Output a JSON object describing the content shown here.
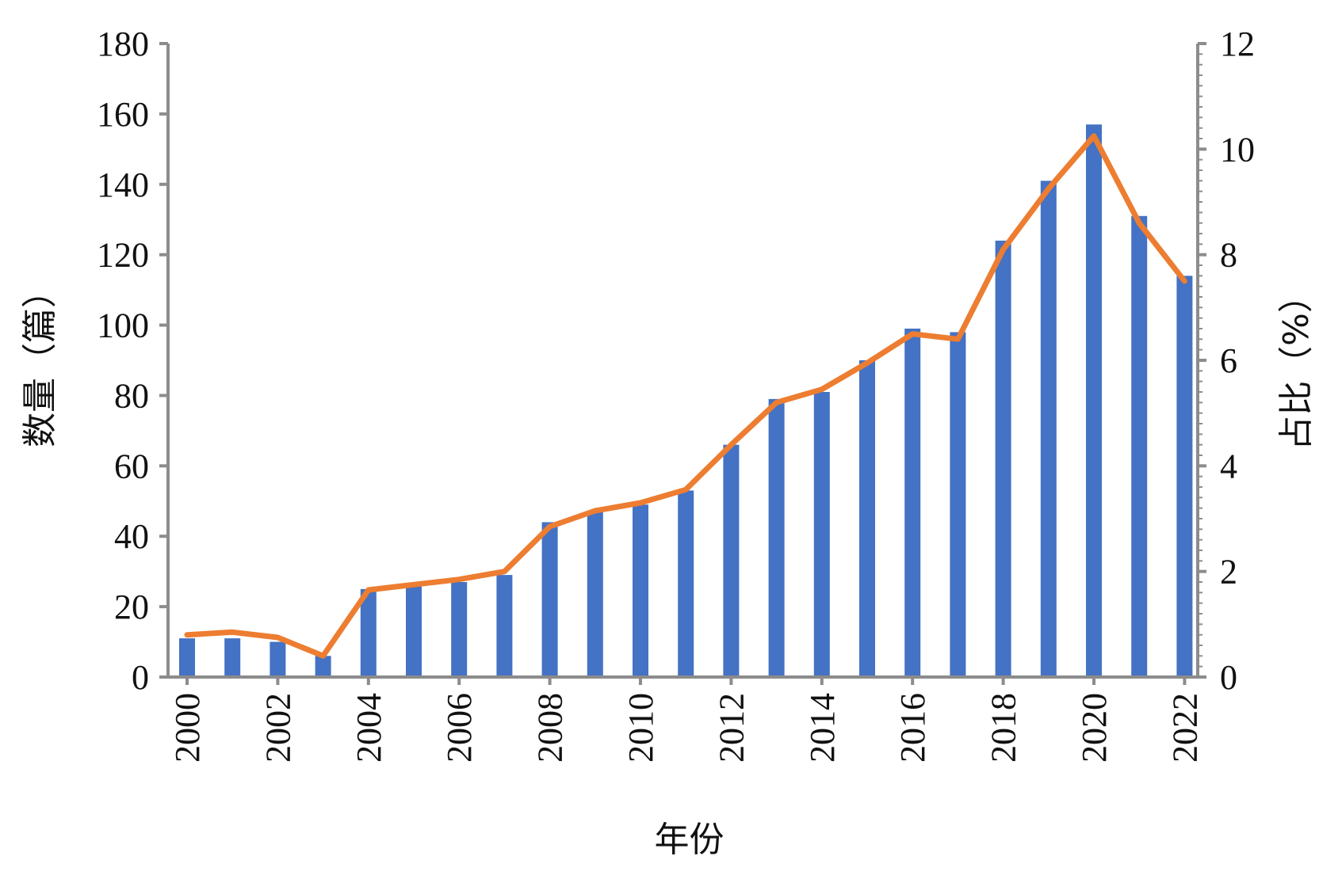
{
  "chart_data": {
    "type": "bar",
    "categories": [
      2000,
      2001,
      2002,
      2003,
      2004,
      2005,
      2006,
      2007,
      2008,
      2009,
      2010,
      2011,
      2012,
      2013,
      2014,
      2015,
      2016,
      2017,
      2018,
      2019,
      2020,
      2021,
      2022
    ],
    "x_tick_labels": [
      "2000",
      "2002",
      "2004",
      "2006",
      "2008",
      "2010",
      "2012",
      "2014",
      "2016",
      "2018",
      "2020",
      "2022"
    ],
    "xlabel": "年份",
    "y_left": {
      "label": "数量（篇）",
      "lim": [
        0,
        180
      ],
      "ticks": [
        "0",
        "20",
        "40",
        "60",
        "80",
        "100",
        "120",
        "140",
        "160",
        "180"
      ]
    },
    "y_right": {
      "label": "占比（%）",
      "lim": [
        0,
        12
      ],
      "ticks": [
        "0",
        "2",
        "4",
        "6",
        "8",
        "10",
        "12"
      ]
    },
    "series": [
      {
        "type": "bar",
        "axis": "left",
        "color": "#4472c4",
        "values": [
          11,
          11,
          10,
          6,
          25,
          26,
          27,
          29,
          44,
          47,
          49,
          53,
          66,
          79,
          81,
          90,
          99,
          98,
          124,
          141,
          157,
          131,
          114
        ]
      },
      {
        "type": "line",
        "axis": "right",
        "color": "#ed7d31",
        "values": [
          0.8,
          0.85,
          0.75,
          0.4,
          1.65,
          1.75,
          1.85,
          2.0,
          2.85,
          3.15,
          3.3,
          3.55,
          4.4,
          5.2,
          5.45,
          5.95,
          6.5,
          6.4,
          8.1,
          9.25,
          10.25,
          8.6,
          7.5
        ]
      }
    ],
    "grid": false,
    "legend": "none"
  }
}
